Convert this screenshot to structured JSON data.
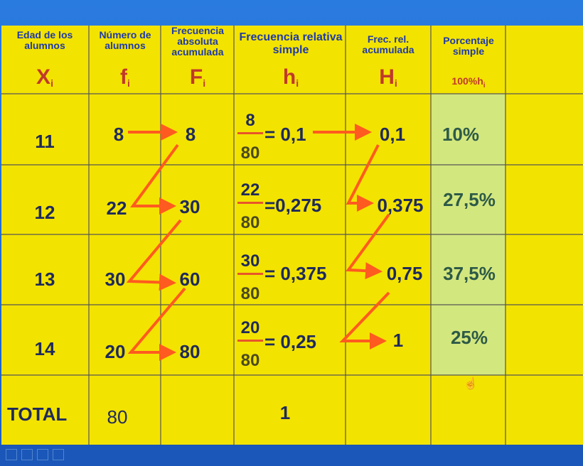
{
  "headers": {
    "age": "Edad de los alumnos",
    "count": "Número de alumnos",
    "abs_cum": "Frecuencia absoluta acumulada",
    "rel": "Frecuencia relativa simple",
    "rel_cum": "Frec. rel. acumulada",
    "pct": "Porcentaje simple"
  },
  "symbols": {
    "x": "X",
    "x_sub": "i",
    "f": "f",
    "f_sub": "i",
    "F": "F",
    "F_sub": "i",
    "h": "h",
    "h_sub": "i",
    "H": "H",
    "H_sub": "i",
    "pct": "100%h",
    "pct_sub": "i"
  },
  "rows": [
    {
      "age": "11",
      "f": "8",
      "F": "8",
      "num": "8",
      "den": "80",
      "h": "= 0,1",
      "H": "0,1",
      "pct": "10%"
    },
    {
      "age": "12",
      "f": "22",
      "F": "30",
      "num": "22",
      "den": "80",
      "h": "=0,275",
      "H": "0,375",
      "pct": "27,5%"
    },
    {
      "age": "13",
      "f": "30",
      "F": "60",
      "num": "30",
      "den": "80",
      "h": "= 0,375",
      "H": "0,75",
      "pct": "37,5%"
    },
    {
      "age": "14",
      "f": "20",
      "F": "80",
      "num": "20",
      "den": "80",
      "h": "= 0,25",
      "H": "1",
      "pct": "25%"
    }
  ],
  "total": {
    "label": "TOTAL",
    "f": "80",
    "h": "1"
  },
  "colors": {
    "table_bg": "#f3e300",
    "highlight": "#cfe88a",
    "arrow": "#ff5a1f",
    "header_text": "#1f3aa8",
    "symbol": "#c0392b"
  }
}
